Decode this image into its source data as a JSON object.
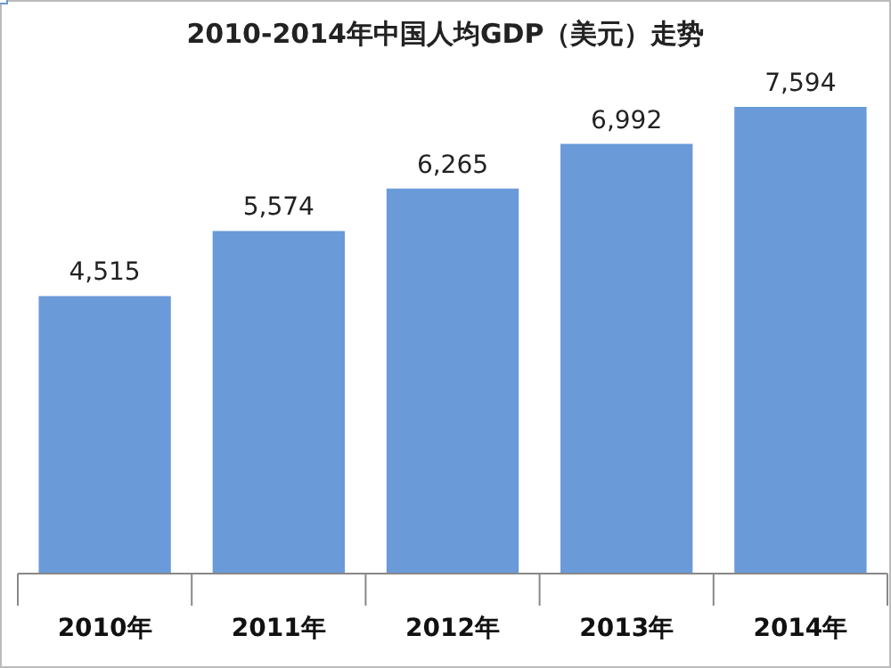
{
  "chart_data": {
    "type": "bar",
    "title": "2010-2014年中国人均GDP（美元）走势",
    "categories": [
      "2010年",
      "2011年",
      "2012年",
      "2013年",
      "2014年"
    ],
    "values": [
      4515,
      5574,
      6265,
      6992,
      7594
    ],
    "value_labels": [
      "4,515",
      "5,574",
      "6,265",
      "6,992",
      "7,594"
    ],
    "color": "#6a9ad8"
  }
}
